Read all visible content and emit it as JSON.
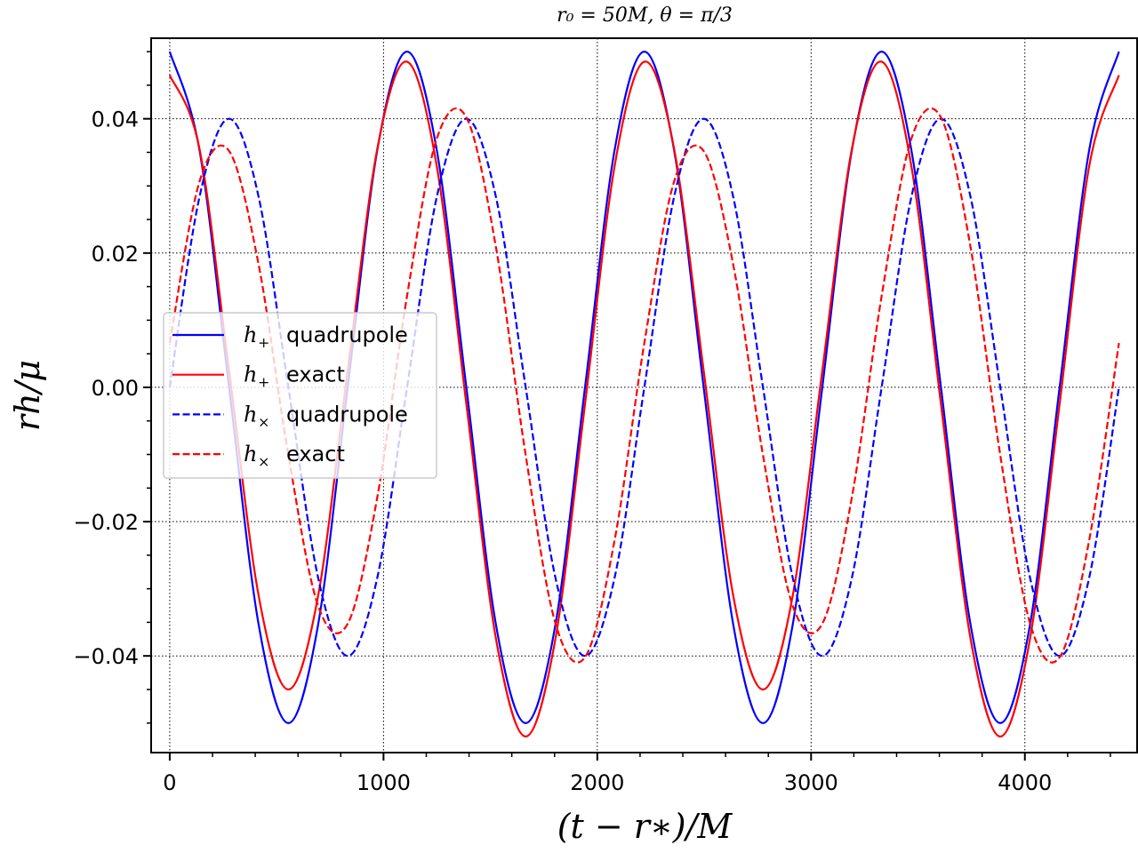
{
  "chart_data": {
    "type": "line",
    "title": "r₀ = 50M, θ = π/3",
    "xlabel": "(t − r∗)/M",
    "ylabel": "rh/μ",
    "xlim": [
      -87,
      4525
    ],
    "ylim": [
      -0.0544,
      0.052
    ],
    "xticks": [
      0,
      1000,
      2000,
      3000,
      4000
    ],
    "xtick_labels": [
      "0",
      "1000",
      "2000",
      "3000",
      "4000"
    ],
    "yticks": [
      -0.04,
      -0.02,
      0.0,
      0.02,
      0.04
    ],
    "ytick_labels": [
      "−0.04",
      "−0.02",
      "0.00",
      "0.02",
      "0.04"
    ],
    "x_minor_step": 200,
    "y_minor_step": 0.005,
    "grid": true,
    "legend_position": "center-left",
    "x_start": 0,
    "x_step": 138.75,
    "series": [
      {
        "name": "h+ quadrupole",
        "symbol": "h",
        "sub": "+",
        "text": "quadrupole",
        "color": "#0000ff",
        "style": "solid",
        "values": [
          0.05,
          0.0354,
          0,
          -0.0354,
          -0.05,
          -0.0354,
          0,
          0.0354,
          0.05,
          0.0354,
          0,
          -0.0354,
          -0.05,
          -0.0354,
          0,
          0.0354,
          0.05,
          0.0354,
          0,
          -0.0354,
          -0.05,
          -0.0354,
          0,
          0.0354,
          0.05,
          0.0354,
          0,
          -0.0354,
          -0.05,
          -0.0354,
          0,
          0.0354,
          0.05
        ]
      },
      {
        "name": "h+ exact",
        "symbol": "h",
        "sub": "+",
        "text": "exact",
        "color": "#ff0000",
        "style": "solid",
        "values": [
          0.0465,
          0.0356,
          0.0025,
          -0.0311,
          -0.045,
          -0.0311,
          0.0025,
          0.0356,
          0.0485,
          0.033,
          -0.0025,
          -0.0375,
          -0.052,
          -0.0375,
          -0.0025,
          0.033,
          0.0485,
          0.0356,
          0.0025,
          -0.0311,
          -0.045,
          -0.0311,
          0.0025,
          0.0356,
          0.0485,
          0.033,
          -0.0025,
          -0.0375,
          -0.052,
          -0.0375,
          -0.0025,
          0.033,
          0.0465
        ]
      },
      {
        "name": "h× quadrupole",
        "symbol": "h",
        "sub": "×",
        "text": "quadrupole",
        "color": "#0000ff",
        "style": "dashed",
        "values": [
          0,
          0.0283,
          0.04,
          0.0283,
          0,
          -0.0283,
          -0.04,
          -0.0283,
          0,
          0.0283,
          0.04,
          0.0283,
          0,
          -0.0283,
          -0.04,
          -0.0283,
          0,
          0.0283,
          0.04,
          0.0283,
          0,
          -0.0283,
          -0.04,
          -0.0283,
          0,
          0.0283,
          0.04,
          0.0283,
          0,
          -0.0283,
          -0.04,
          -0.0283,
          0
        ]
      },
      {
        "name": "h× exact",
        "symbol": "h",
        "sub": "×",
        "text": "exact",
        "color": "#ff0000",
        "style": "dashed",
        "values": [
          0.0066,
          0.0306,
          0.0352,
          0.0182,
          -0.0101,
          -0.0325,
          -0.0352,
          -0.0163,
          0.0136,
          0.037,
          0.0402,
          0.0208,
          -0.0101,
          -0.0351,
          -0.0402,
          -0.0227,
          0.0066,
          0.0306,
          0.0352,
          0.0182,
          -0.0101,
          -0.0325,
          -0.0352,
          -0.0163,
          0.0136,
          0.037,
          0.0402,
          0.0208,
          -0.0101,
          -0.0351,
          -0.0402,
          -0.0227,
          0.0066
        ]
      }
    ]
  }
}
